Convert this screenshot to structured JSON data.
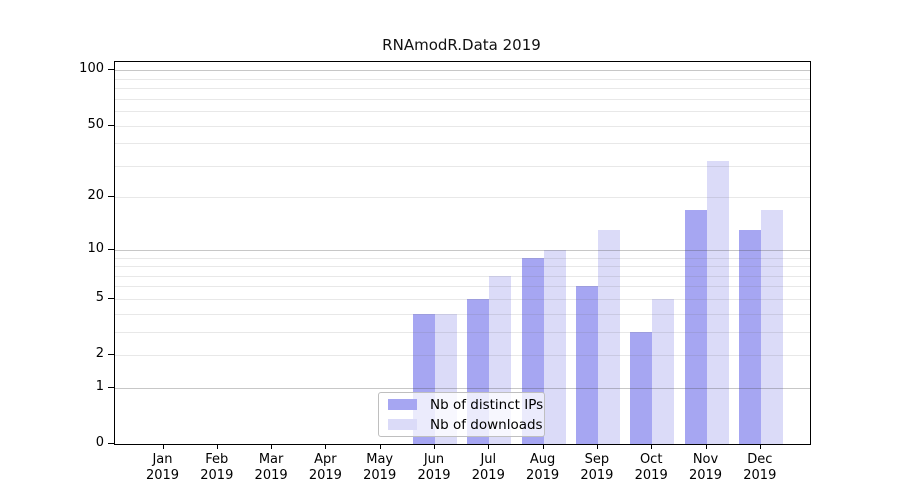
{
  "title": "RNAmodR.Data 2019",
  "colors": {
    "distinct_ips_bar": "#a6a6f2",
    "downloads_bar": "#dbdbf8",
    "axis": "#000000",
    "grid_minor": "#e8e8e8",
    "grid_major": "#c9c9c9",
    "legend_border": "#bfbfbf"
  },
  "legend": {
    "items": [
      {
        "label": "Nb of distinct IPs",
        "color": "#a6a6f2"
      },
      {
        "label": "Nb of downloads",
        "color": "#dbdbf8"
      }
    ]
  },
  "chart_data": {
    "type": "bar",
    "title": "RNAmodR.Data 2019",
    "categories": [
      "Jan",
      "Feb",
      "Mar",
      "Apr",
      "May",
      "Jun",
      "Jul",
      "Aug",
      "Sep",
      "Oct",
      "Nov",
      "Dec"
    ],
    "x_sublabel": "2019",
    "series": [
      {
        "name": "Nb of distinct IPs",
        "color": "#a6a6f2",
        "values": [
          0,
          0,
          0,
          0,
          0,
          4,
          5,
          9,
          6,
          3,
          17,
          13
        ]
      },
      {
        "name": "Nb of downloads",
        "color": "#dbdbf8",
        "values": [
          0,
          0,
          0,
          0,
          0,
          4,
          7,
          10,
          13,
          5,
          32,
          17
        ]
      }
    ],
    "yscale": "log1p",
    "yticks": [
      0,
      1,
      2,
      5,
      10,
      20,
      50,
      100
    ],
    "ylim": [
      0,
      112
    ],
    "xlabel": "",
    "ylabel": "",
    "grid": "horizontal",
    "legend_position": "inside-bottom-center"
  }
}
